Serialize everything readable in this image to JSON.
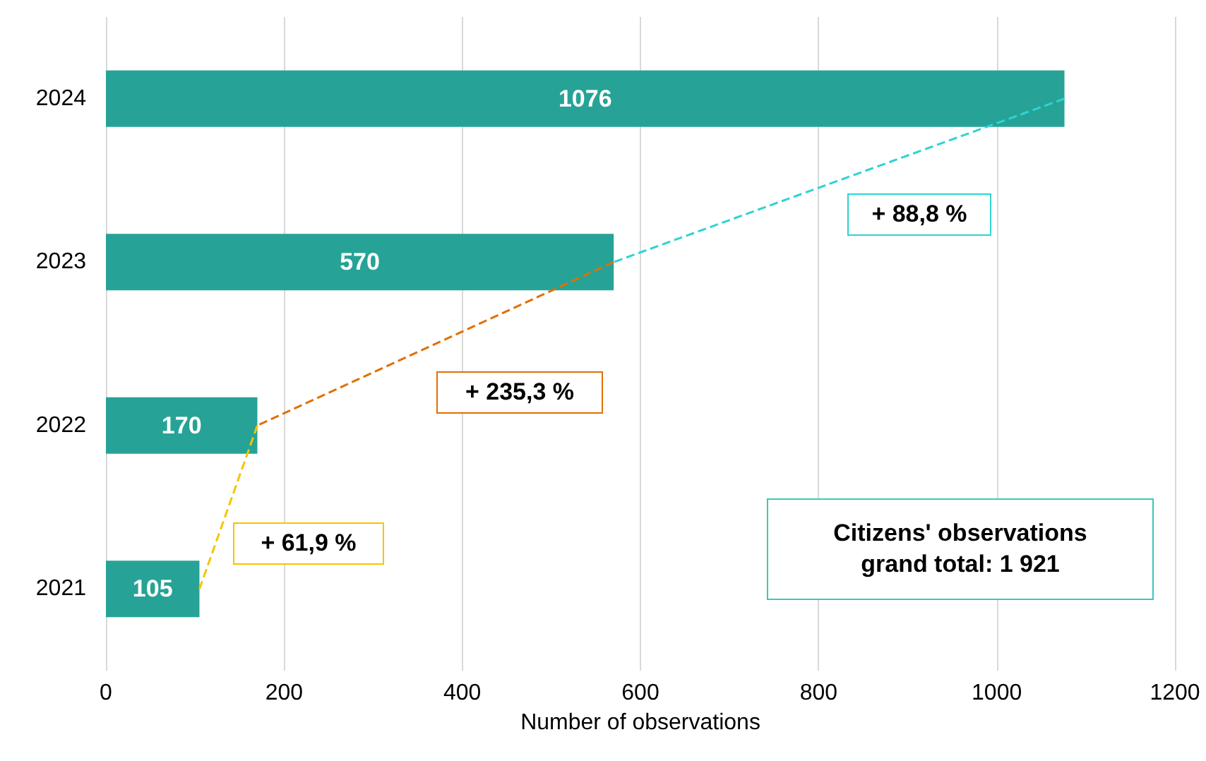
{
  "chart_data": {
    "type": "bar",
    "orientation": "horizontal",
    "xlabel": "Number of observations",
    "categories": [
      "2024",
      "2023",
      "2022",
      "2021"
    ],
    "series": [
      {
        "color": "#26a396",
        "values": [
          1076,
          570,
          170,
          105
        ],
        "value_labels": [
          "1076",
          "570",
          "170",
          "105"
        ]
      },
      {
        "type": "line",
        "color": "#f5c400",
        "line_style": "dashed",
        "values": [
          null,
          null,
          170,
          105
        ]
      },
      {
        "type": "line",
        "color": "#e07000",
        "line_style": "dashed",
        "values": [
          null,
          570,
          170,
          null
        ]
      },
      {
        "type": "line",
        "color": "#2ed3d3",
        "line_style": "dashed",
        "values": [
          1076,
          570,
          null,
          null
        ]
      }
    ],
    "xlim": [
      0,
      1200
    ],
    "xticks": [
      0,
      200,
      400,
      600,
      800,
      1000,
      1200
    ],
    "grid": "x",
    "marker": "none",
    "annotations": [
      "+ 61,9 %",
      "+ 235,3 %",
      "+ 88,8 %",
      "Citizens' observations\ngrand total: 1 921"
    ]
  }
}
